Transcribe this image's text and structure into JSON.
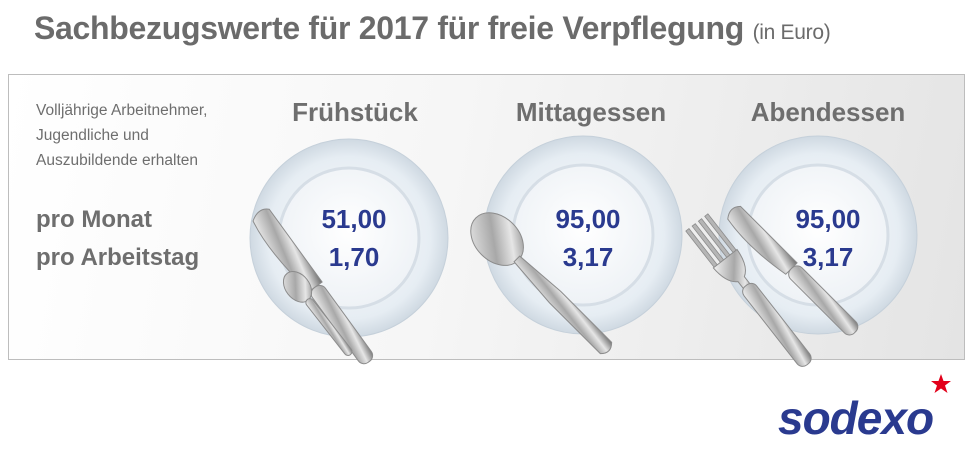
{
  "title": "Sachbezugswerte für 2017 für freie Verpflegung",
  "title_unit": "(in Euro)",
  "intro_lines": [
    "Volljährige Arbeitnehmer,",
    "Jugendliche und",
    "Auszubildende erhalten"
  ],
  "row_labels": {
    "month": "pro Monat",
    "day": "pro Arbeitstag"
  },
  "meals": [
    {
      "name": "Frühstück",
      "month": "51,00",
      "day": "1,70",
      "utensils": [
        "knife-icon",
        "spoon-icon"
      ]
    },
    {
      "name": "Mittagessen",
      "month": "95,00",
      "day": "3,17",
      "utensils": [
        "spoon-icon"
      ]
    },
    {
      "name": "Abendessen",
      "month": "95,00",
      "day": "3,17",
      "utensils": [
        "fork-icon",
        "knife-icon"
      ]
    }
  ],
  "logo": "sodexo",
  "colors": {
    "value_text": "#2a3a8f",
    "label_text": "#6e6e6e",
    "logo": "#2a3a8f",
    "logo_star": "#e2001a"
  }
}
